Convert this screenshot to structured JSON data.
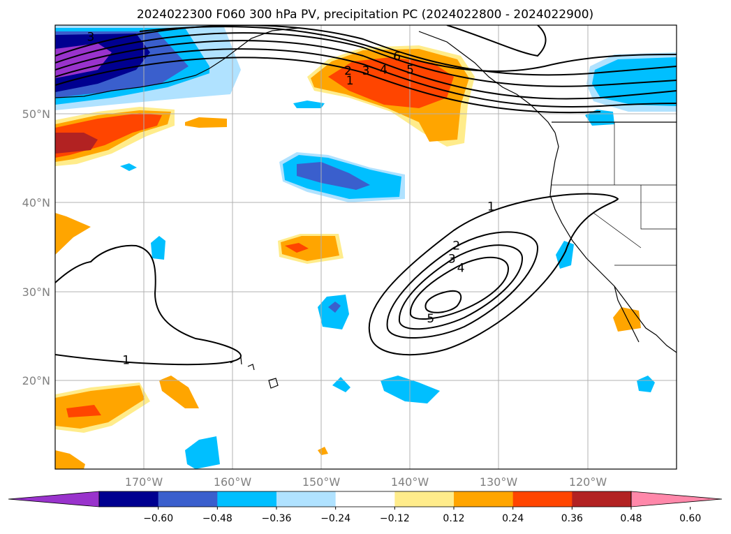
{
  "title": "2024022300 F060 300 hPa PV, precipitation PC (2024022800 - 2024022900)",
  "map": {
    "lat_labels": [
      "50°N",
      "40°N",
      "30°N",
      "20°N"
    ],
    "lon_labels": [
      "170°W",
      "160°W",
      "150°W",
      "140°W",
      "130°W",
      "120°W"
    ],
    "extent": {
      "lon_min": -180,
      "lon_max": -110,
      "lat_min": 10,
      "lat_max": 60
    },
    "gridlines": true
  },
  "colorbar": {
    "ticks": [
      "−0.60",
      "−0.48",
      "−0.36",
      "−0.24",
      "−0.12",
      "0.12",
      "0.24",
      "0.36",
      "0.48",
      "0.60"
    ],
    "colors": [
      "#9933cc",
      "#000090",
      "#3a5fcd",
      "#00bfff",
      "#b0e2ff",
      "#ffffff",
      "#ffec8b",
      "#ffa500",
      "#ff4500",
      "#b22222",
      "#ff88aa"
    ],
    "extend": "both"
  },
  "contours": {
    "pv_labels": [
      {
        "text": "3",
        "lon": -176,
        "lat": 58.7
      },
      {
        "text": "6",
        "lon": -141.5,
        "lat": 56.5
      },
      {
        "text": "2",
        "lon": -147,
        "lat": 54.9
      },
      {
        "text": "3",
        "lon": -145,
        "lat": 54.9
      },
      {
        "text": "4",
        "lon": -143,
        "lat": 55.0
      },
      {
        "text": "5",
        "lon": -140,
        "lat": 55.0
      },
      {
        "text": "1",
        "lon": -146.8,
        "lat": 53.8
      },
      {
        "text": "1",
        "lon": -130.9,
        "lat": 39.6
      },
      {
        "text": "2",
        "lon": -134.8,
        "lat": 35.2
      },
      {
        "text": "3",
        "lon": -135.3,
        "lat": 33.7
      },
      {
        "text": "4",
        "lon": -134.3,
        "lat": 32.7
      },
      {
        "text": "5",
        "lon": -137.7,
        "lat": 27.0
      },
      {
        "text": "1",
        "lon": -172,
        "lat": 22.3
      }
    ]
  }
}
